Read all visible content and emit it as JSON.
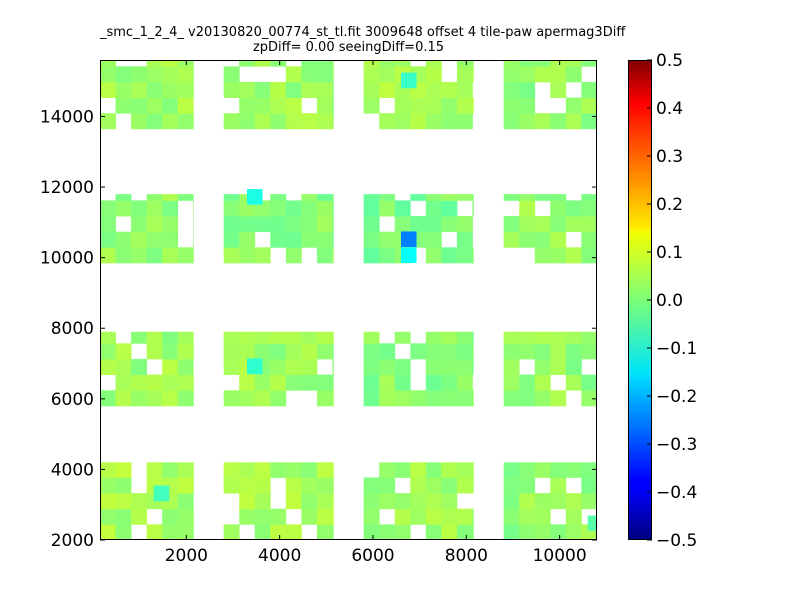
{
  "chart_data": {
    "type": "heatmap",
    "title_line1": "_smc_1_2_4_ v20130820_00774_st_tl.fit 3009648 offset 4 tile-paw apermag3Diff",
    "title_line2": "zpDiff= 0.00 seeingDiff=0.15",
    "xlabel": "",
    "ylabel": "",
    "xlim": [
      150,
      10800
    ],
    "ylim": [
      2000,
      15600
    ],
    "x_ticks": [
      2000,
      4000,
      6000,
      8000,
      10000
    ],
    "x_tick_labels": [
      "2000",
      "4000",
      "6000",
      "8000",
      "10000"
    ],
    "y_ticks": [
      2000,
      4000,
      6000,
      8000,
      10000,
      12000,
      14000
    ],
    "y_tick_labels": [
      "2000",
      "4000",
      "6000",
      "8000",
      "10000",
      "12000",
      "14000"
    ],
    "cell_width": 333,
    "cell_height": 443,
    "colormap": "jet",
    "colorbar": {
      "vmin": -0.5,
      "vmax": 0.5,
      "ticks": [
        0.5,
        0.4,
        0.3,
        0.2,
        0.1,
        0.0,
        -0.1,
        -0.2,
        -0.3,
        -0.4,
        -0.5
      ],
      "tick_labels": [
        "0.5",
        "0.4",
        "0.3",
        "0.2",
        "0.1",
        "0.0",
        "−0.1",
        "−0.2",
        "−0.3",
        "−0.4",
        "−0.5"
      ]
    },
    "grid": false,
    "blocks": [
      {
        "x_range": [
          150,
          2150
        ],
        "y_range": [
          13650,
          15600
        ],
        "base_value": 0.03
      },
      {
        "x_range": [
          2800,
          5150
        ],
        "y_range": [
          13650,
          15600
        ],
        "base_value": 0.03
      },
      {
        "x_range": [
          5800,
          8150
        ],
        "y_range": [
          13650,
          15600
        ],
        "base_value": 0.04
      },
      {
        "x_range": [
          8800,
          10800
        ],
        "y_range": [
          13650,
          15600
        ],
        "base_value": 0.02
      },
      {
        "x_range": [
          150,
          2150
        ],
        "y_range": [
          9850,
          11800
        ],
        "base_value": 0.02
      },
      {
        "x_range": [
          2800,
          5150
        ],
        "y_range": [
          9850,
          11800
        ],
        "base_value": 0.01
      },
      {
        "x_range": [
          5800,
          8150
        ],
        "y_range": [
          9850,
          11800
        ],
        "base_value": 0.0
      },
      {
        "x_range": [
          8800,
          10800
        ],
        "y_range": [
          9850,
          11800
        ],
        "base_value": 0.02
      },
      {
        "x_range": [
          150,
          2150
        ],
        "y_range": [
          5800,
          7900
        ],
        "base_value": 0.03
      },
      {
        "x_range": [
          2800,
          5150
        ],
        "y_range": [
          5800,
          7900
        ],
        "base_value": 0.03
      },
      {
        "x_range": [
          5800,
          8150
        ],
        "y_range": [
          5800,
          7900
        ],
        "base_value": 0.01
      },
      {
        "x_range": [
          8800,
          10800
        ],
        "y_range": [
          5800,
          7900
        ],
        "base_value": 0.02
      },
      {
        "x_range": [
          150,
          2150
        ],
        "y_range": [
          2000,
          4200
        ],
        "base_value": 0.04
      },
      {
        "x_range": [
          2800,
          5150
        ],
        "y_range": [
          2000,
          4200
        ],
        "base_value": 0.04
      },
      {
        "x_range": [
          5800,
          8150
        ],
        "y_range": [
          2000,
          4200
        ],
        "base_value": 0.03
      },
      {
        "x_range": [
          8800,
          10800
        ],
        "y_range": [
          2000,
          4200
        ],
        "base_value": 0.02
      }
    ],
    "highlight_cells": [
      {
        "x": 6600,
        "y": 10300,
        "value": -0.25
      },
      {
        "x": 6600,
        "y": 9850,
        "value": -0.12
      },
      {
        "x": 6600,
        "y": 14800,
        "value": -0.07
      },
      {
        "x": 3300,
        "y": 11500,
        "value": -0.1
      },
      {
        "x": 3300,
        "y": 6700,
        "value": -0.08
      },
      {
        "x": 1300,
        "y": 3100,
        "value": -0.06
      },
      {
        "x": 10600,
        "y": 2250,
        "value": -0.04
      }
    ]
  }
}
